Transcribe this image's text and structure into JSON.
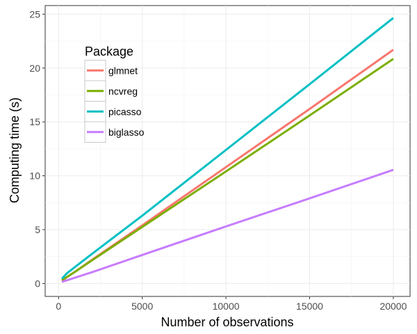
{
  "chart_data": {
    "type": "line",
    "title": "",
    "xlabel": "Number of observations",
    "ylabel": "Computing time (s)",
    "xlim": [
      -800,
      21000
    ],
    "ylim": [
      -1.2,
      25.8
    ],
    "x_ticks": [
      0,
      5000,
      10000,
      15000,
      20000
    ],
    "y_ticks": [
      0,
      5,
      10,
      15,
      20,
      25
    ],
    "grid": true,
    "legend": {
      "title": "Package",
      "placement": "top-left"
    },
    "x": [
      200,
      500,
      1000,
      2000,
      5000,
      10000,
      15000,
      20000
    ],
    "series": [
      {
        "name": "glmnet",
        "color": "#F8766D",
        "values": [
          0.25,
          0.6,
          1.1,
          2.2,
          5.4,
          10.8,
          16.2,
          21.7
        ]
      },
      {
        "name": "ncvreg",
        "color": "#7CAE00",
        "values": [
          0.3,
          0.6,
          1.1,
          2.15,
          5.25,
          10.4,
          15.6,
          20.85
        ]
      },
      {
        "name": "picasso",
        "color": "#00BFC4",
        "values": [
          0.45,
          0.95,
          1.55,
          2.75,
          6.3,
          12.4,
          18.5,
          24.65
        ]
      },
      {
        "name": "biglasso",
        "color": "#C77CFF",
        "values": [
          0.15,
          0.3,
          0.55,
          1.05,
          2.65,
          5.3,
          7.9,
          10.55
        ]
      }
    ]
  }
}
